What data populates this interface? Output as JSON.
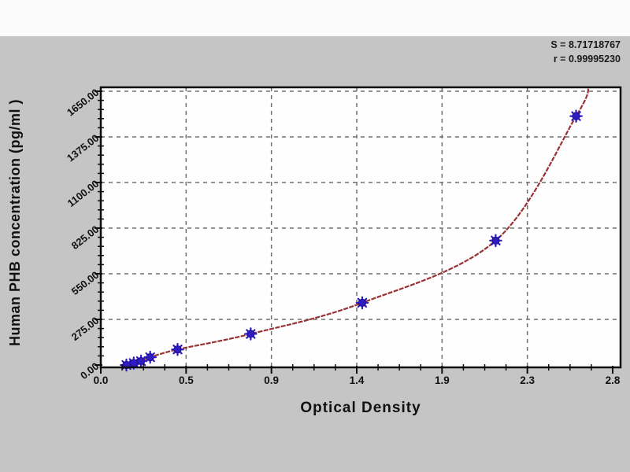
{
  "chart_data": {
    "type": "scatter",
    "title": "",
    "xlabel": "Optical Density",
    "ylabel": "Human PHB concentration (pg/ml )",
    "x": [
      0.14,
      0.18,
      0.22,
      0.27,
      0.42,
      0.82,
      1.43,
      2.16,
      2.6
    ],
    "y": [
      0,
      11.7,
      23.4,
      46.9,
      93.8,
      187.5,
      375,
      750,
      1500
    ],
    "xlim": [
      0,
      2.8
    ],
    "ylim": [
      0,
      1650
    ],
    "x_ticks": [
      "0.0",
      "0.5",
      "0.9",
      "1.4",
      "1.9",
      "2.3",
      "2.8"
    ],
    "y_ticks": [
      "0.00",
      "275.00",
      "550.00",
      "825.00",
      "1100.00",
      "1375.00",
      "1650.00"
    ],
    "grid": "dashed-both",
    "legend": "none",
    "annotations": [
      "S = 8.71718767",
      "r = 0.99995230"
    ],
    "fit_curve": {
      "extends_to_x": 2.67,
      "extends_to_y": 1675,
      "color": "#993333"
    },
    "marker_color": "#2e1cc0",
    "marker_edge_color": "#1c1090",
    "grid_color": "#6f6f6f",
    "axis_color": "#0d0d0d",
    "plot_bg": "#fefefe",
    "page_bg": "#c5c5c5"
  }
}
